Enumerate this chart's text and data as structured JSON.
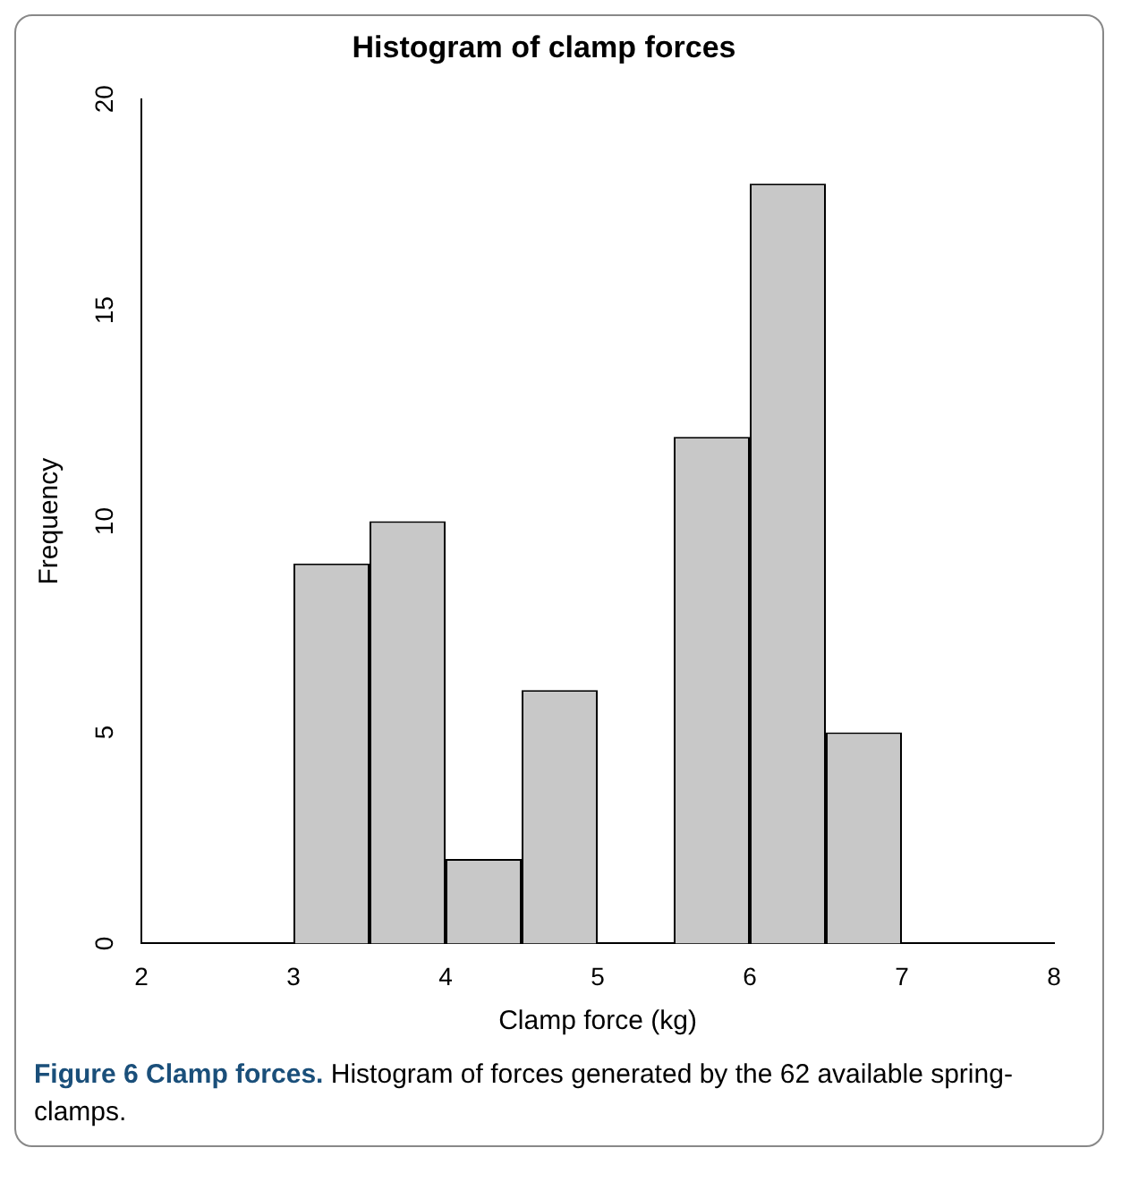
{
  "chart_data": {
    "type": "histogram",
    "title": "Histogram of clamp forces",
    "xlabel": "Clamp force (kg)",
    "ylabel": "Frequency",
    "bins": [
      3,
      3.5,
      4,
      4.5,
      5,
      5.5,
      6,
      6.5,
      7
    ],
    "values": [
      9,
      10,
      2,
      6,
      0,
      12,
      18,
      5
    ],
    "color": "#c8c8c8",
    "xlim": [
      2,
      8
    ],
    "xticks": [
      2,
      3,
      4,
      5,
      6,
      7,
      8
    ],
    "ylim": [
      0,
      20
    ],
    "yticks": [
      0,
      5,
      10,
      15,
      20
    ],
    "grid": false,
    "legend": false,
    "annotations": [
      "Figure 6 Clamp forces.",
      "Histogram of forces generated by the 62 available spring-clamps."
    ]
  }
}
